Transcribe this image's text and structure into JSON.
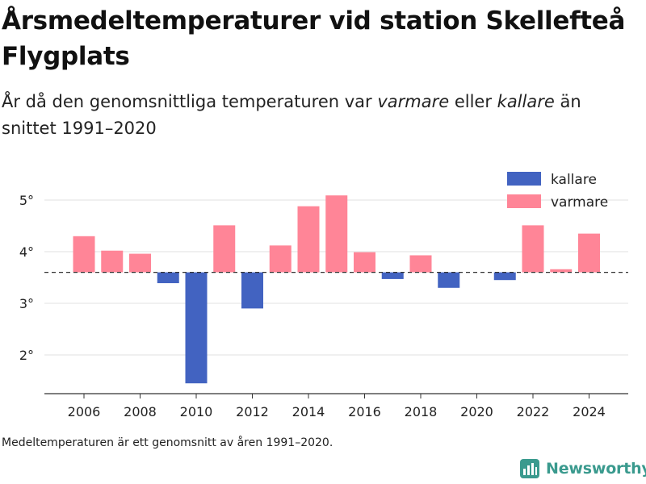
{
  "header": {
    "title": "Årsmedeltemperaturer vid station Skellefteå Flygplats",
    "subtitle_parts": [
      "År då den genomsnittliga temperaturen var ",
      "varmare",
      " eller ",
      "kallare",
      " än snittet 1991–2020"
    ]
  },
  "footer": {
    "note": "Medeltemperaturen är ett genomsnitt av åren 1991–2020.",
    "brand": "Newsworthy"
  },
  "colors": {
    "warmer": "#ff8597",
    "colder": "#4263c1",
    "baseline": "#333333",
    "grid": "#e0e0e0"
  },
  "chart_data": {
    "type": "bar",
    "baseline": 3.6,
    "categories": [
      2006,
      2007,
      2008,
      2009,
      2010,
      2011,
      2012,
      2013,
      2014,
      2015,
      2016,
      2017,
      2018,
      2019,
      2020,
      2021,
      2022,
      2023,
      2024
    ],
    "values": [
      4.3,
      4.02,
      3.96,
      3.39,
      1.45,
      4.51,
      2.9,
      4.12,
      4.88,
      5.09,
      3.99,
      3.47,
      3.93,
      3.3,
      null,
      3.45,
      4.51,
      3.66,
      4.35
    ],
    "xticks": [
      2006,
      2008,
      2010,
      2012,
      2014,
      2016,
      2018,
      2020,
      2022,
      2024
    ],
    "yticks": [
      2,
      3,
      4,
      5
    ],
    "ytick_suffix": "°",
    "ylim": [
      1.3,
      5.5
    ],
    "legend": [
      {
        "label": "kallare",
        "kind": "colder"
      },
      {
        "label": "varmare",
        "kind": "warmer"
      }
    ],
    "legend_position": "top-right",
    "grid": true
  }
}
